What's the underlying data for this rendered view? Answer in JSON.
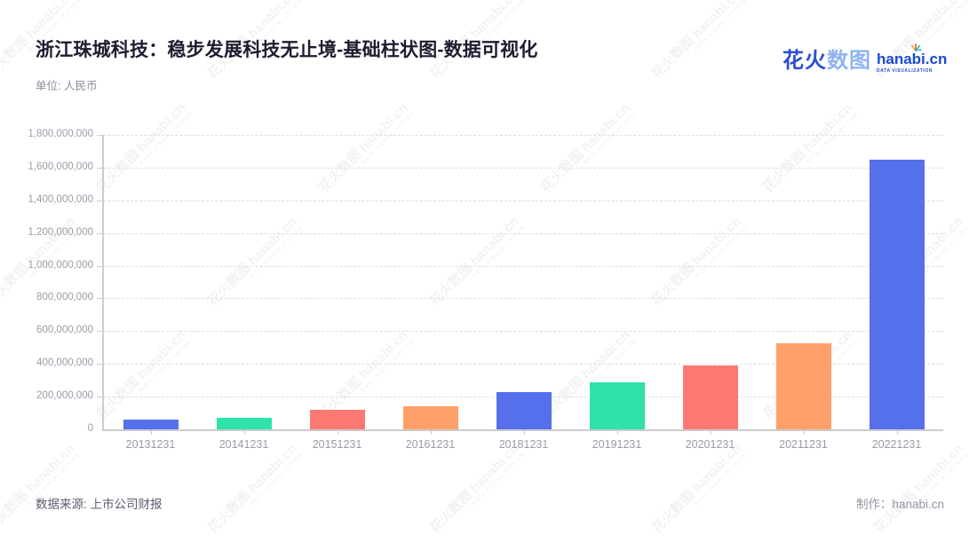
{
  "header": {
    "title": "浙江珠城科技：稳步发展科技无止境-基础柱状图-数据可视化",
    "subtitle": "单位: 人民币"
  },
  "logo": {
    "cn_primary": "花火",
    "cn_secondary": "数图",
    "domain": "hanabi.cn",
    "tagline": "DATA VISUALIZATION"
  },
  "watermark": {
    "line1": "花火数图 hanabi.cn",
    "line2": "DATA VISUALIZATION"
  },
  "chart_data": {
    "type": "bar",
    "title": "浙江珠城科技：稳步发展科技无止境-基础柱状图-数据可视化",
    "unit_label": "单位: 人民币",
    "categories": [
      "20131231",
      "20141231",
      "20151231",
      "20161231",
      "20181231",
      "20191231",
      "20201231",
      "20211231",
      "20221231"
    ],
    "values": [
      62000000,
      70000000,
      118000000,
      142000000,
      230000000,
      285000000,
      392000000,
      528000000,
      1650000000
    ],
    "bar_colors": [
      "#5570ea",
      "#2fe2aa",
      "#fc7872",
      "#ffa06b"
    ],
    "ylim": [
      0,
      1800000000
    ],
    "y_tick_interval": 200000000,
    "y_tick_labels": [
      "0",
      "200,000,000",
      "400,000,000",
      "600,000,000",
      "800,000,000",
      "1,000,000,000",
      "1,200,000,000",
      "1,400,000,000",
      "1,600,000,000",
      "1,800,000,000"
    ],
    "xlabel": "",
    "ylabel": "",
    "grid": "horizontal-dashed",
    "legend": "none"
  },
  "footer": {
    "source": "数据来源: 上市公司财报",
    "credit": "制作：hanabi.cn"
  }
}
